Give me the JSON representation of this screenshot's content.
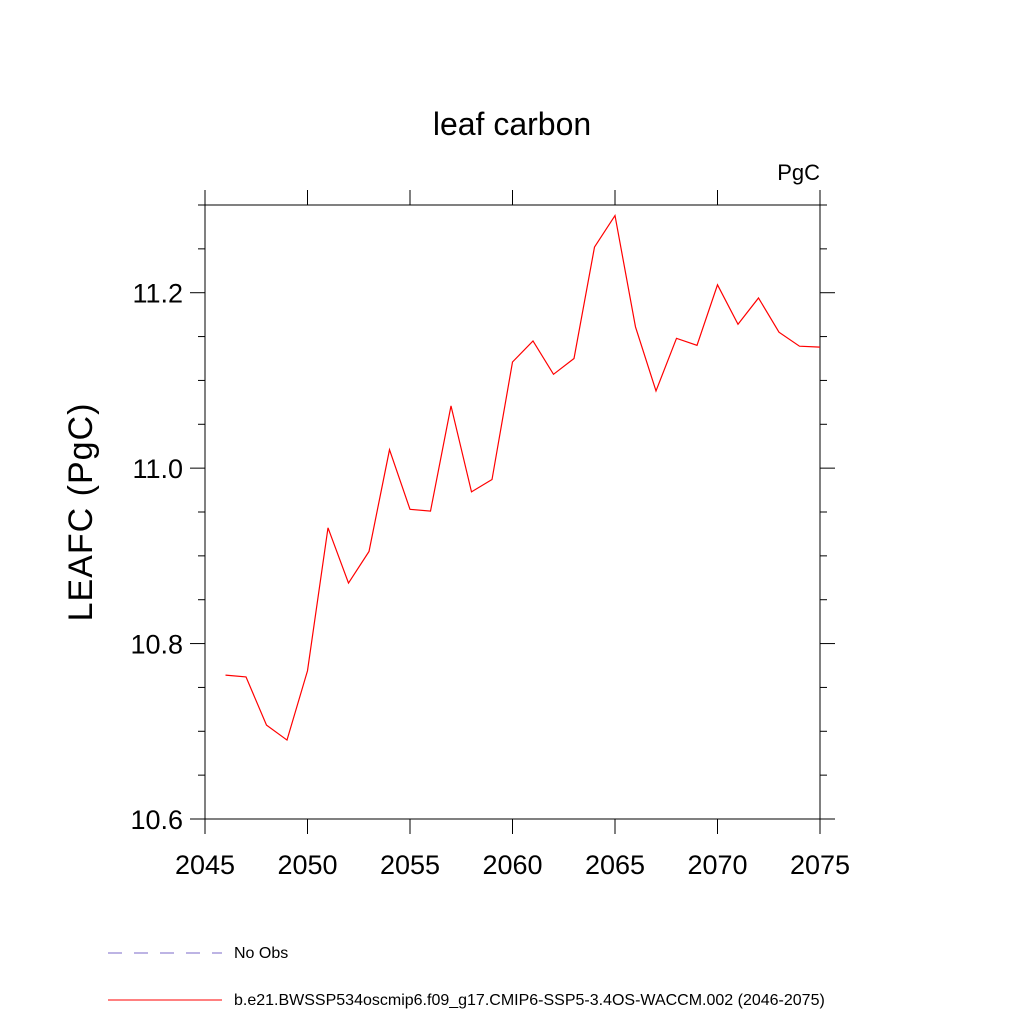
{
  "chart_data": {
    "type": "line",
    "title": "leaf carbon",
    "units": "PgC",
    "ylabel": "LEAFC  (PgC)",
    "xlabel": "",
    "xlim": [
      2045,
      2075
    ],
    "ylim": [
      10.6,
      11.3
    ],
    "x_ticks": [
      2045,
      2050,
      2055,
      2060,
      2065,
      2070,
      2075
    ],
    "x_tick_labels": [
      "2045",
      "2050",
      "2055",
      "2060",
      "2065",
      "2070",
      "2075"
    ],
    "y_ticks": [
      10.6,
      10.8,
      11.0,
      11.2
    ],
    "y_tick_labels": [
      "10.6",
      "10.8",
      "11.0",
      "11.2"
    ],
    "y_minor_step": 0.05,
    "x_minor_step": 1,
    "grid": false,
    "legend_placement": "bottom",
    "colors": {
      "model": "#ff0000",
      "obs": "#7b68c8",
      "axis": "#000000"
    },
    "legend": [
      {
        "label": "No Obs",
        "style": "dashed",
        "color": "#7b68c8"
      },
      {
        "label": "b.e21.BWSSP534oscmip6.f09_g17.CMIP6-SSP5-3.4OS-WACCM.002 (2046-2075)",
        "style": "solid",
        "color": "#ff0000"
      }
    ],
    "series": [
      {
        "name": "b.e21.BWSSP534oscmip6.f09_g17.CMIP6-SSP5-3.4OS-WACCM.002 (2046-2075)",
        "x": [
          2046,
          2047,
          2048,
          2049,
          2050,
          2051,
          2052,
          2053,
          2054,
          2055,
          2056,
          2057,
          2058,
          2059,
          2060,
          2061,
          2062,
          2063,
          2064,
          2065,
          2066,
          2067,
          2068,
          2069,
          2070,
          2071,
          2072,
          2073,
          2074,
          2075
        ],
        "values": [
          10.764,
          10.762,
          10.707,
          10.69,
          10.769,
          10.932,
          10.869,
          10.905,
          11.021,
          10.953,
          10.951,
          11.071,
          10.973,
          10.987,
          11.121,
          11.145,
          11.107,
          11.125,
          11.252,
          11.288,
          11.161,
          11.088,
          11.148,
          11.14,
          11.209,
          11.164,
          11.194,
          11.155,
          11.139,
          11.138
        ]
      }
    ]
  }
}
